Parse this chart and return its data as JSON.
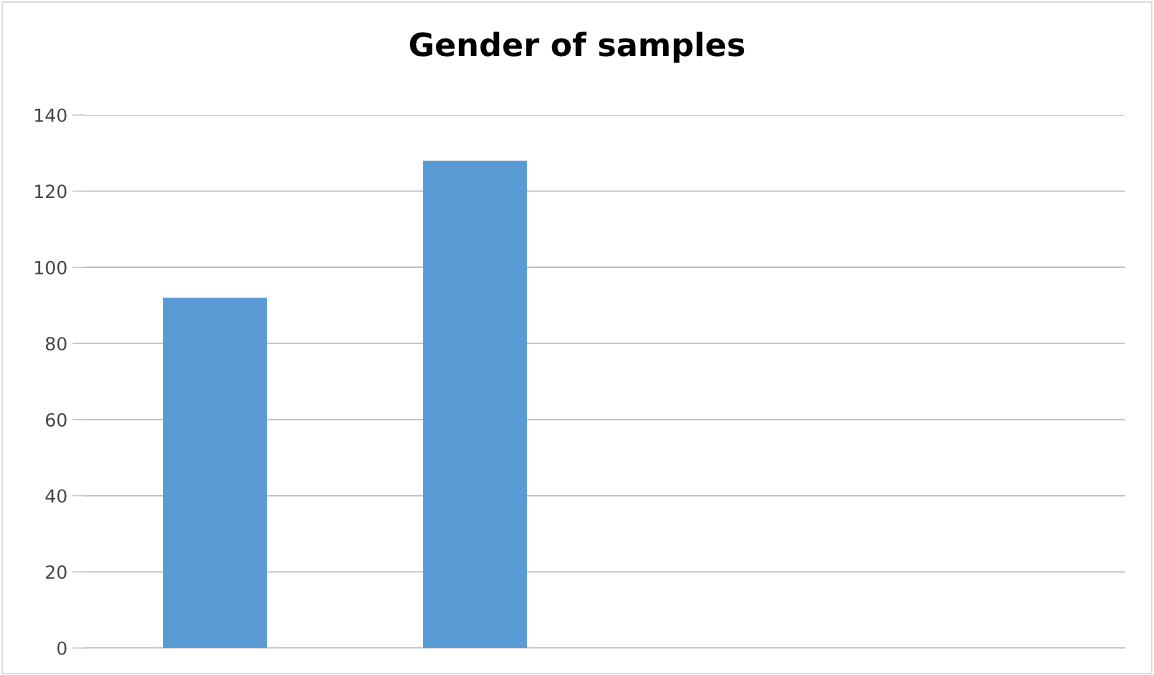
{
  "chart_data": {
    "type": "bar",
    "title": "Gender of samples",
    "categories": [
      null,
      null,
      null,
      null
    ],
    "values": [
      92,
      128,
      null,
      null
    ],
    "color": "#5b9bd5",
    "ylim": [
      0,
      140
    ],
    "yticks": [
      0,
      20,
      40,
      60,
      80,
      100,
      120,
      140
    ],
    "grid": "y",
    "legend": false
  }
}
